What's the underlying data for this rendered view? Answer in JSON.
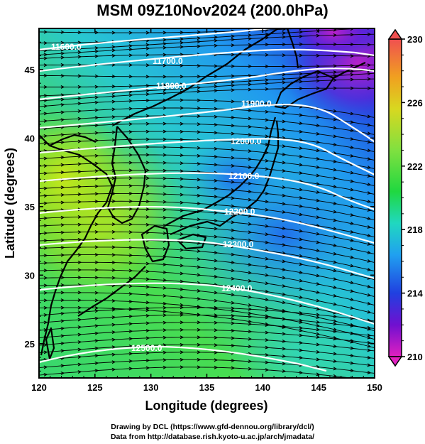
{
  "title": "MSM 09Z10Nov2024 (200.0hPa)",
  "credits": [
    "Drawing by DCL (https://www.gfd-dennou.org/library/dcl/)",
    "Data from http://database.rish.kyoto-u.ac.jp/arch/jmadata/"
  ],
  "map": {
    "x_axis": {
      "label": "Longitude (degrees)",
      "range": [
        120,
        150
      ],
      "ticks": [
        "120",
        "125",
        "130",
        "135",
        "140",
        "145",
        "150"
      ]
    },
    "y_axis": {
      "label": "Latitude  (degrees)",
      "range": [
        22.5,
        48
      ],
      "ticks": [
        "25",
        "30",
        "35",
        "40",
        "45"
      ]
    },
    "height_contours": [
      {
        "label": "11600.0",
        "value": 11600
      },
      {
        "label": "11700.0",
        "value": 11700
      },
      {
        "label": "11800.0",
        "value": 11800
      },
      {
        "label": "11900.0",
        "value": 11900
      },
      {
        "label": "12000.0",
        "value": 12000
      },
      {
        "label": "12100.0",
        "value": 12100
      },
      {
        "label": "12200.0",
        "value": 12200
      },
      {
        "label": "12300.0",
        "value": 12300
      },
      {
        "label": "12400.0",
        "value": 12400
      },
      {
        "label": "12500.0",
        "value": 12500
      }
    ],
    "colorbar": {
      "min": 210,
      "max": 230,
      "tick_labels": [
        "230",
        "226",
        "222",
        "218",
        "214",
        "210"
      ],
      "colors": [
        "#f06060",
        "#e8a020",
        "#d8d820",
        "#80e040",
        "#20d840",
        "#20d8c0",
        "#20a0f0",
        "#2040e0",
        "#7010d0",
        "#e020c0"
      ]
    },
    "field_colors": {
      "west_low": "#b8e818",
      "west_mid": "#50dc40",
      "south": "#40d8a0",
      "east_mid": "#20b8f0",
      "northeast": "#2050e0",
      "far_northeast": "#c020c8"
    }
  }
}
